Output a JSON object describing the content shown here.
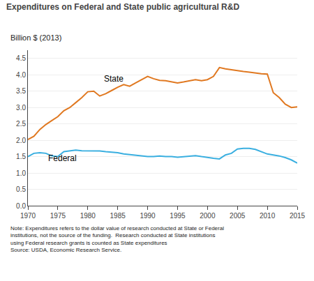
{
  "chart_data": {
    "type": "line",
    "title": "Expenditures on Federal and State public agricultural R&D",
    "ylabel": "Billion $ (2013)",
    "note": "Note: Expenditures refers to the dollar value of research conducted at State or Federal\ninstitutions, not the source of the funding.  Research conducted at State institutions\nusing Federal research grants is counted as State expenditures\nSource: USDA, Economic Research Service.",
    "x": [
      1970,
      1971,
      1972,
      1973,
      1974,
      1975,
      1976,
      1977,
      1978,
      1979,
      1980,
      1981,
      1982,
      1983,
      1984,
      1985,
      1986,
      1987,
      1988,
      1989,
      1990,
      1991,
      1992,
      1993,
      1994,
      1995,
      1996,
      1997,
      1998,
      1999,
      2000,
      2001,
      2002,
      2003,
      2004,
      2005,
      2006,
      2007,
      2008,
      2009,
      2010,
      2011,
      2012,
      2013,
      2014,
      2015
    ],
    "series": [
      {
        "name": "State",
        "color": "#E07820",
        "label_x": 1982.5,
        "label_y": 3.68,
        "values": [
          2.02,
          2.12,
          2.33,
          2.48,
          2.6,
          2.72,
          2.9,
          3.0,
          3.15,
          3.3,
          3.48,
          3.5,
          3.35,
          3.42,
          3.52,
          3.62,
          3.7,
          3.65,
          3.75,
          3.85,
          3.95,
          3.88,
          3.83,
          3.82,
          3.78,
          3.75,
          3.78,
          3.82,
          3.85,
          3.82,
          3.85,
          3.95,
          4.22,
          4.18,
          4.15,
          4.12,
          4.1,
          4.08,
          4.05,
          4.03,
          4.02,
          3.45,
          3.3,
          3.1,
          3.0,
          3.02
        ]
      },
      {
        "name": "Federal",
        "color": "#3AAFE0",
        "label_x": 1973.2,
        "label_y": 1.26,
        "values": [
          1.5,
          1.6,
          1.62,
          1.6,
          1.52,
          1.5,
          1.65,
          1.68,
          1.7,
          1.68,
          1.68,
          1.67,
          1.67,
          1.65,
          1.63,
          1.62,
          1.58,
          1.56,
          1.55,
          1.52,
          1.5,
          1.5,
          1.52,
          1.5,
          1.5,
          1.48,
          1.5,
          1.52,
          1.53,
          1.5,
          1.47,
          1.45,
          1.43,
          1.55,
          1.6,
          1.73,
          1.75,
          1.75,
          1.72,
          1.65,
          1.58,
          1.55,
          1.52,
          1.47,
          1.4,
          1.3
        ]
      }
    ],
    "xlim": [
      1970,
      2015
    ],
    "xticks": [
      1970,
      1975,
      1980,
      1985,
      1990,
      1995,
      2000,
      2005,
      2010,
      2015
    ],
    "ylim": [
      0.0,
      4.75
    ],
    "yticks": [
      {
        "value": 0.0,
        "label": "0.0"
      },
      0.5,
      {
        "value": 1.0,
        "label": "1.0"
      },
      1.5,
      {
        "value": 2.0,
        "label": "2.0"
      },
      2.5,
      {
        "value": 3.0,
        "label": "3.0"
      },
      3.5,
      {
        "value": 4.0,
        "label": "4.0"
      },
      4.5
    ],
    "grid": "y"
  }
}
